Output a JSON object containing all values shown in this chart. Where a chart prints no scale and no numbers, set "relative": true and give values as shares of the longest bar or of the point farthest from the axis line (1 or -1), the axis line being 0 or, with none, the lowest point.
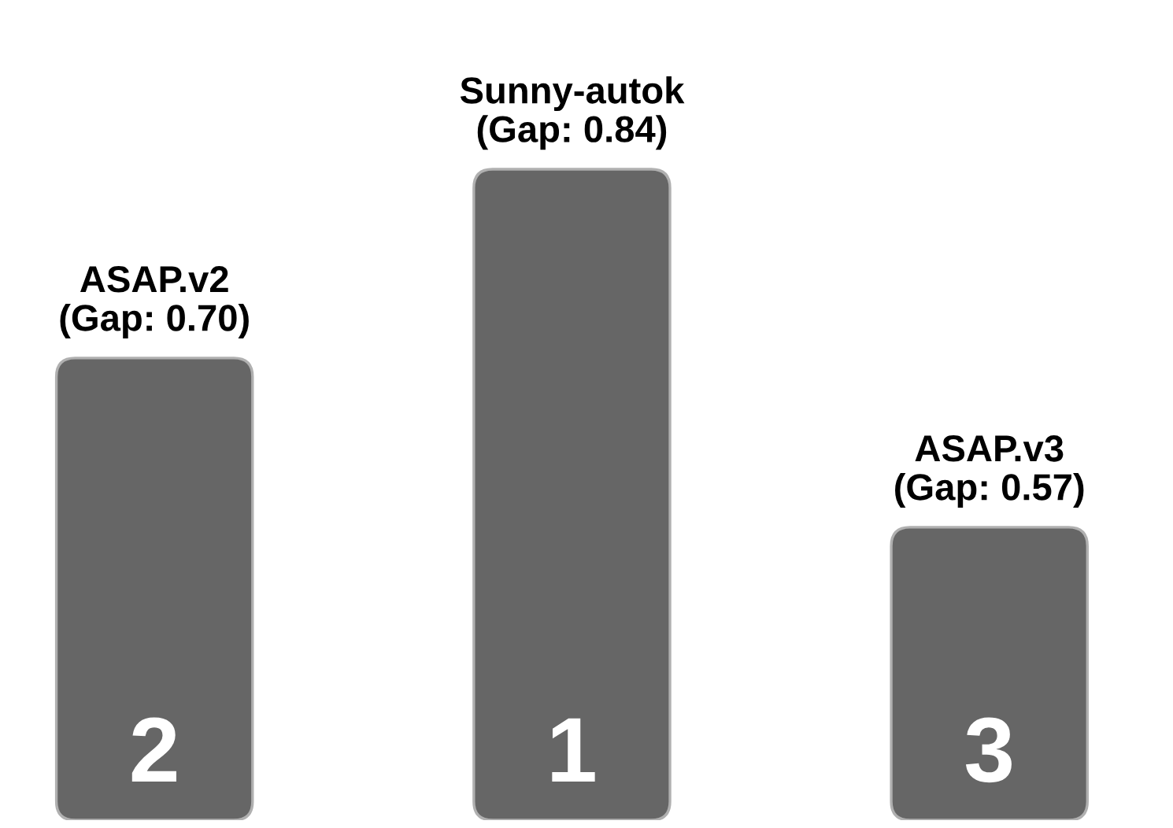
{
  "chart_data": {
    "type": "bar",
    "relative": true,
    "categories": [
      "ASAP.v2\n(Gap: 0.70)",
      "Sunny-autok\n(Gap: 0.84)",
      "ASAP.v3\n(Gap: 0.57)"
    ],
    "values": [
      0.71,
      1,
      0.45
    ],
    "color": "#666666",
    "annotations": [
      "2",
      "1",
      "3"
    ]
  }
}
